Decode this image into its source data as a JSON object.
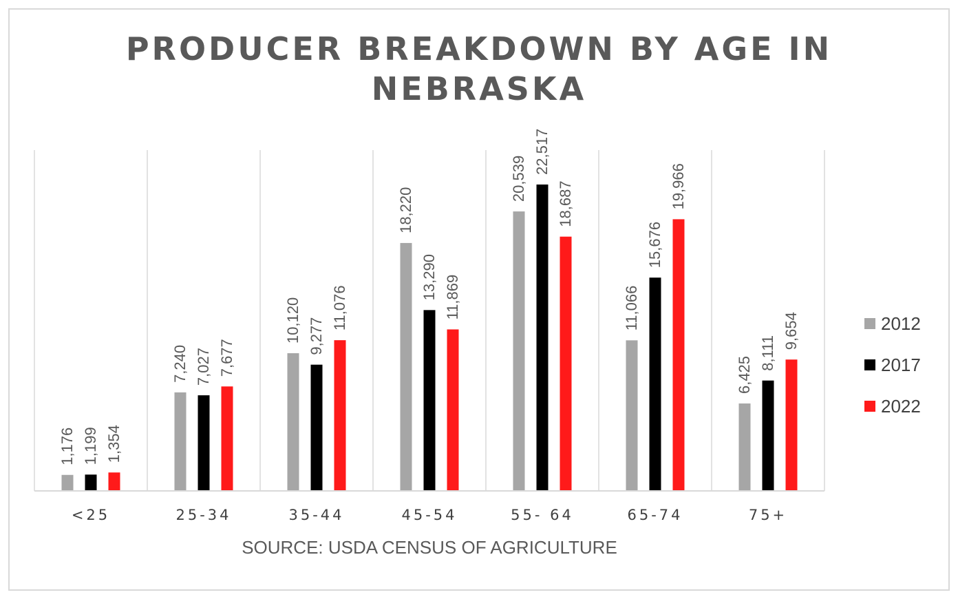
{
  "chart_data": {
    "type": "bar",
    "title_lines": [
      "PRODUCER BREAKDOWN BY AGE IN",
      "NEBRASKA"
    ],
    "categories": [
      "<25",
      "25-34",
      "35-44",
      "45-54",
      "55- 64",
      "65-74",
      "75+"
    ],
    "series": [
      {
        "name": "2012",
        "color": "#a6a6a6",
        "values": [
          1176,
          7240,
          10120,
          18220,
          20539,
          11066,
          6425
        ]
      },
      {
        "name": "2017",
        "color": "#000000",
        "values": [
          1199,
          7027,
          9277,
          13290,
          22517,
          15676,
          8111
        ]
      },
      {
        "name": "2022",
        "color": "#ff1a1a",
        "values": [
          1354,
          7677,
          11076,
          11869,
          18687,
          19966,
          9654
        ]
      }
    ],
    "value_labels": [
      [
        "1,176",
        "7,240",
        "10,120",
        "18,220",
        "20,539",
        "11,066",
        "6,425"
      ],
      [
        "1,199",
        "7,027",
        "9,277",
        "13,290",
        "22,517",
        "15,676",
        "8,111"
      ],
      [
        "1,354",
        "7,677",
        "11,076",
        "11,869",
        "18,687",
        "19,966",
        "9,654"
      ]
    ],
    "ylim": [
      0,
      25000
    ],
    "legend_position": "right",
    "source": "SOURCE: USDA CENSUS OF AGRICULTURE"
  }
}
